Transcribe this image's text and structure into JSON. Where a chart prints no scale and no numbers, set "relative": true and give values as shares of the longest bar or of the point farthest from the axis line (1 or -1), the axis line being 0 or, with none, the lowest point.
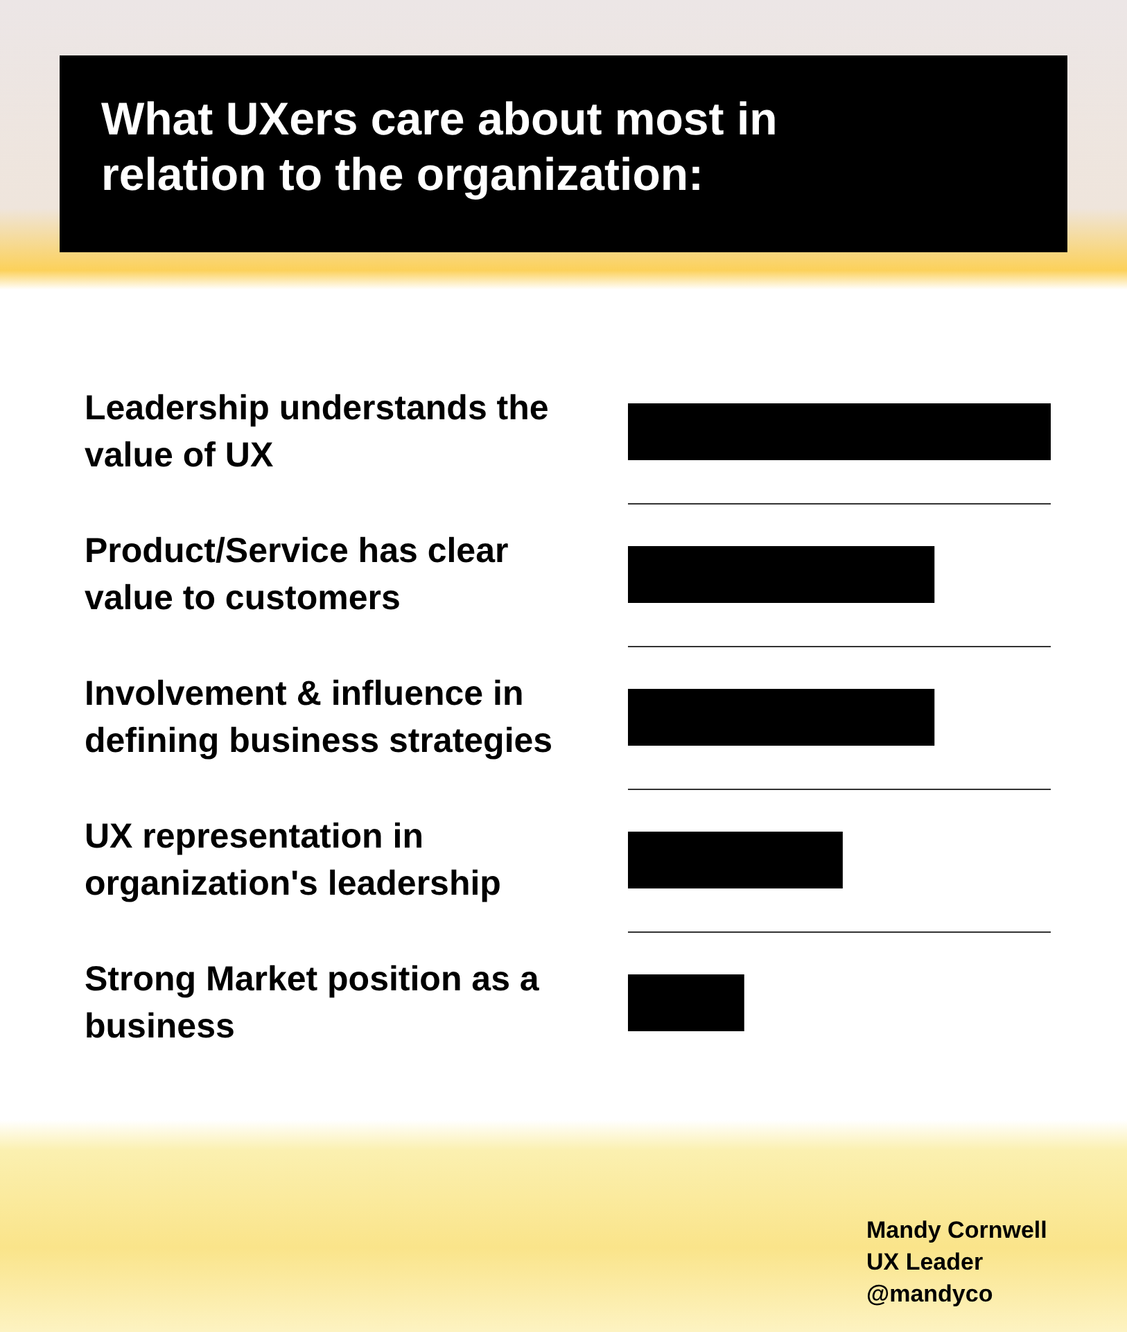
{
  "chart_data": {
    "type": "bar",
    "orientation": "horizontal",
    "relative": true,
    "title": "What UXers care about most in relation to the organization:",
    "categories": [
      "Leadership understands the value of UX",
      "Product/Service has clear value to customers",
      "Involvement & influence in defining business strategies",
      "UX representation in organization's leadership",
      "Strong Market position as a business"
    ],
    "values": [
      1,
      0.725,
      0.725,
      0.508,
      0.275
    ],
    "color": "#000000",
    "grid": "y",
    "annotations": [
      "Mandy Cornwell\nUX Leader\n@mandyco"
    ]
  }
}
